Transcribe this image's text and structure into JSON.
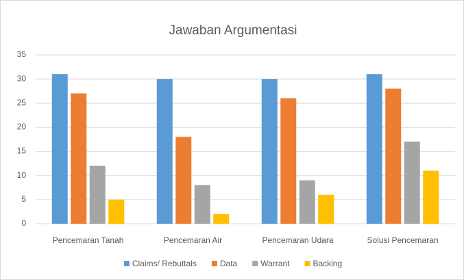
{
  "chart_data": {
    "type": "bar",
    "title": "Jawaban Argumentasi",
    "categories": [
      "Pencemaran Tanah",
      "Pencemaran Air",
      "Pencemaran Udara",
      "Solusi Pencemaran"
    ],
    "series": [
      {
        "name": "Claims/ Rebuttals",
        "color": "#5b9bd5",
        "values": [
          31,
          30,
          30,
          31
        ]
      },
      {
        "name": "Data",
        "color": "#ed7d31",
        "values": [
          27,
          18,
          26,
          28
        ]
      },
      {
        "name": "Warrant",
        "color": "#a5a5a5",
        "values": [
          12,
          8,
          9,
          17
        ]
      },
      {
        "name": "Backing",
        "color": "#ffc000",
        "values": [
          5,
          2,
          6,
          11
        ]
      }
    ],
    "ylim": [
      0,
      35
    ],
    "yticks": [
      0,
      5,
      10,
      15,
      20,
      25,
      30,
      35
    ],
    "grid": true,
    "legend": "bottom"
  }
}
